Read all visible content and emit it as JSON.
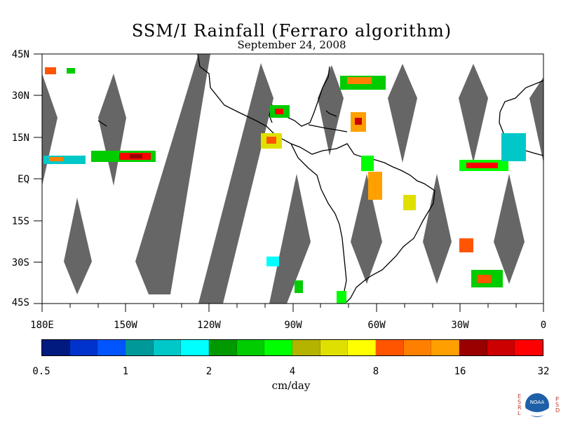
{
  "title": "SSM/I Rainfall (Ferraro algorithm)",
  "subtitle": "September 24, 2008",
  "lat_labels": [
    "45N",
    "30N",
    "15N",
    "EQ",
    "15S",
    "30S",
    "45S"
  ],
  "lon_labels": [
    "180E",
    "150W",
    "120W",
    "90W",
    "60W",
    "30W",
    "0"
  ],
  "colorbar": {
    "tick_labels": [
      "0.5",
      "1",
      "2",
      "4",
      "8",
      "16",
      "32"
    ],
    "units": "cm/day",
    "colors": [
      "#001a80",
      "#0033cc",
      "#0055ff",
      "#009999",
      "#00c8c8",
      "#00ffff",
      "#009900",
      "#00cc00",
      "#00ff00",
      "#b3b300",
      "#e0e000",
      "#ffff00",
      "#ff5500",
      "#ff8000",
      "#ffa000",
      "#990000",
      "#cc0000",
      "#ff0000"
    ]
  },
  "colors": {
    "swath_gap": "#666666",
    "coast": "#000000",
    "background": "#ffffff"
  },
  "logo": {
    "left_text": "ESRL",
    "right_text": "PSD",
    "center_text": "NOAA"
  }
}
